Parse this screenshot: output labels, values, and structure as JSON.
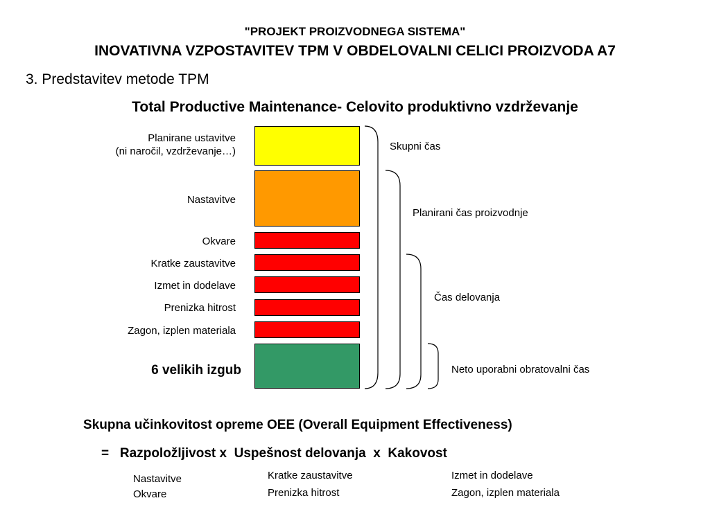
{
  "header": {
    "project_title": "\"PROJEKT PROIZVODNEGA SISTEMA\"",
    "main_title": "INOVATIVNA VZPOSTAVITEV TPM V OBDELOVALNI CELICI PROIZVODA A7",
    "section": "3. Predstavitev metode TPM",
    "subtitle": "Total Productive Maintenance- Celovito produktivno vzdrževanje"
  },
  "diagram": {
    "blocks": [
      {
        "label_line1": "Planirane ustavitve",
        "label_line2": "(ni naročil, vzdrževanje…)",
        "color": "#ffff00"
      },
      {
        "label": "Nastavitve",
        "color": "#ff9900"
      },
      {
        "label": "Okvare",
        "color": "#ff0000"
      },
      {
        "label": "Kratke zaustavitve",
        "color": "#ff0000"
      },
      {
        "label": "Izmet in dodelave",
        "color": "#ff0000"
      },
      {
        "label": "Prenizka hitrost",
        "color": "#ff0000"
      },
      {
        "label": "Zagon, izplen materiala",
        "color": "#ff0000"
      },
      {
        "label": "6 velikih izgub",
        "color": "#339966"
      }
    ],
    "brackets": [
      {
        "label": "Skupni čas"
      },
      {
        "label": "Planirani čas proizvodnje"
      },
      {
        "label": "Čas delovanja"
      },
      {
        "label": "Neto uporabni obratovalni čas"
      }
    ]
  },
  "oee": {
    "definition": "Skupna učinkovitost opreme OEE  (Overall Equipment Effectiveness)",
    "formula": "=   Razpoložljivost x  Uspešnost delovanja  x  Kakovost",
    "availability": [
      "Nastavitve",
      "Okvare"
    ],
    "performance": [
      "Kratke zaustavitve",
      "Prenizka hitrost"
    ],
    "quality": [
      "Izmet in dodelave",
      "Zagon, izplen materiala"
    ]
  }
}
